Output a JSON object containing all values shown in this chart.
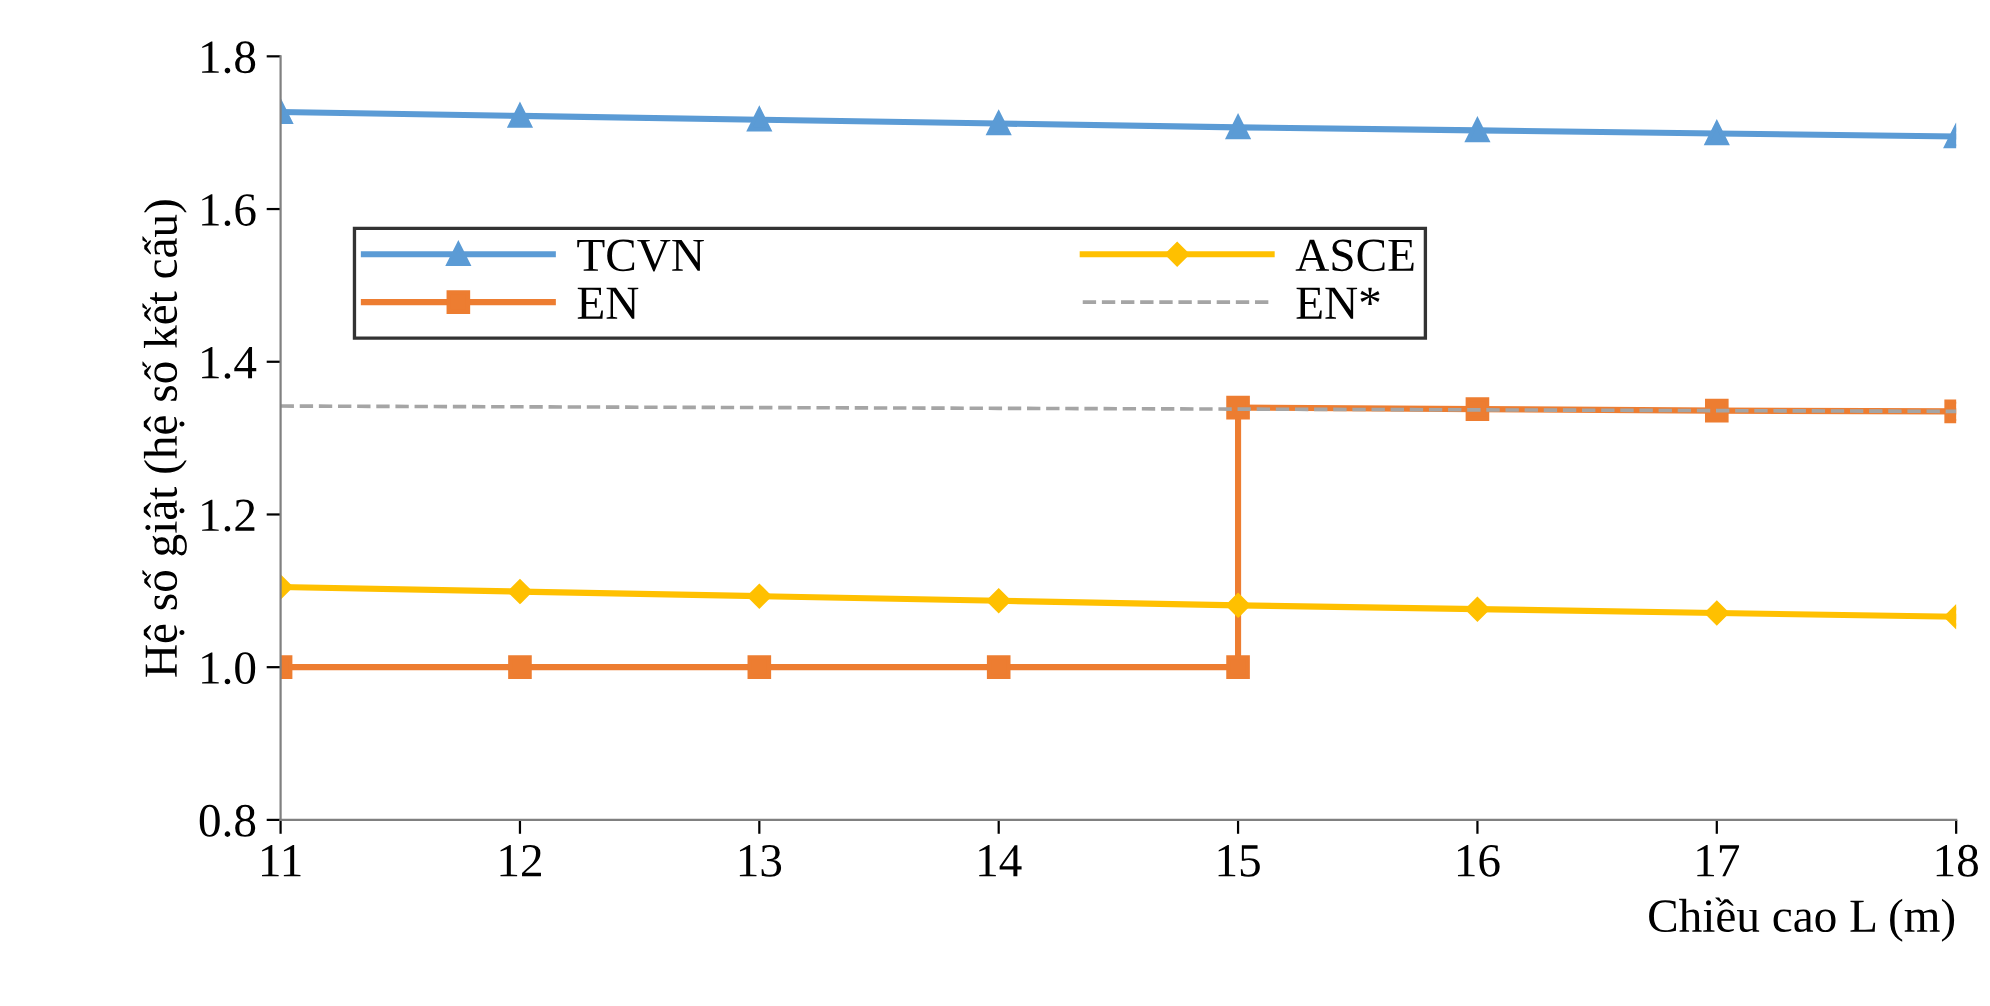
{
  "chart_data": {
    "type": "line",
    "xlabel": "Chiều cao L (m)",
    "ylabel": "Hệ số giật (hệ số kết cấu)",
    "x": [
      11,
      12,
      13,
      14,
      15,
      16,
      17,
      18
    ],
    "xlim": [
      11,
      18
    ],
    "xticks": [
      11,
      12,
      13,
      14,
      15,
      16,
      17,
      18
    ],
    "ylim": [
      0.8,
      1.8
    ],
    "yticks": [
      {
        "value": 0.8,
        "label": "0.8"
      },
      {
        "value": 1.0,
        "label": "1.0"
      },
      {
        "value": 1.2,
        "label": "1.2"
      },
      {
        "value": 1.4,
        "label": "1.4"
      },
      {
        "value": 1.6,
        "label": "1.6"
      },
      {
        "value": 1.8,
        "label": "1.8"
      }
    ],
    "grid": false,
    "legend": "top",
    "line_style": "solid",
    "series": [
      {
        "name": "TCVN",
        "color": "#5b9bd5",
        "marker": "triangle",
        "values": [
          1.727,
          1.722,
          1.717,
          1.712,
          1.707,
          1.703,
          1.699,
          1.695
        ]
      },
      {
        "name": "EN",
        "color": "#ed7d31",
        "marker": "square",
        "x": [
          11,
          12,
          13,
          14,
          15,
          15,
          16,
          17,
          18
        ],
        "values": [
          1.0,
          1.0,
          1.0,
          1.0,
          1.0,
          1.34,
          1.338,
          1.336,
          1.335
        ]
      },
      {
        "name": "ASCE",
        "color": "#ffc000",
        "marker": "diamond",
        "values": [
          1.105,
          1.099,
          1.093,
          1.087,
          1.081,
          1.076,
          1.071,
          1.066
        ]
      },
      {
        "name": "EN*",
        "color": "#a5a5a5",
        "marker": "none",
        "line_style": "dashed",
        "values": [
          1.342,
          1.341,
          1.34,
          1.339,
          1.338,
          1.337,
          1.336,
          1.335
        ]
      }
    ]
  }
}
